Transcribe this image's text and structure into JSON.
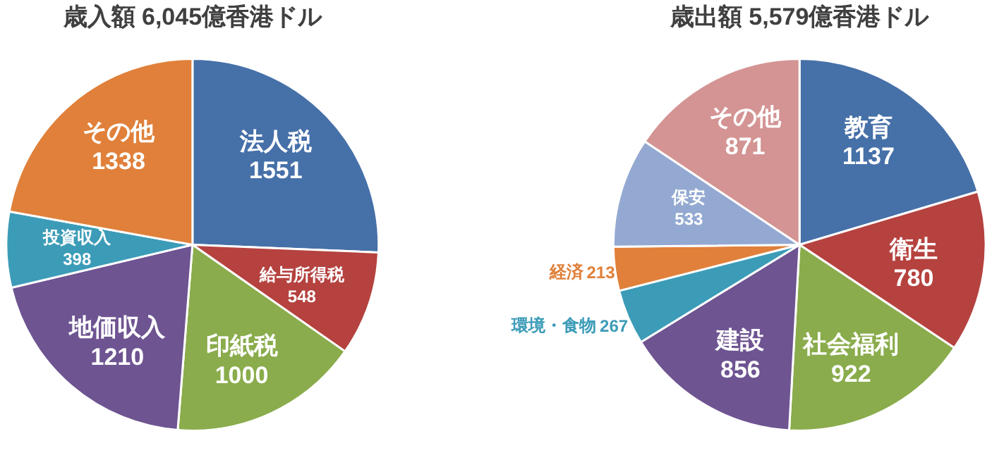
{
  "chart_data": [
    {
      "type": "pie",
      "title": "歳入額 6,045億香港ドル",
      "categories": [
        "法人税",
        "給与所得税",
        "印紙税",
        "地価収入",
        "投資収入",
        "その他"
      ],
      "values": [
        1551,
        548,
        1000,
        1210,
        398,
        1338
      ],
      "colors": [
        "#4670a8",
        "#b5423f",
        "#8aac4c",
        "#6e5491",
        "#3c9cb8",
        "#e0803a"
      ],
      "data_labels": true
    },
    {
      "type": "pie",
      "title": "歳出額 5,579億香港ドル",
      "categories": [
        "教育",
        "衛生",
        "社会福利",
        "建設",
        "環境・食物",
        "経済",
        "保安",
        "その他"
      ],
      "values": [
        1137,
        780,
        922,
        856,
        267,
        213,
        533,
        871
      ],
      "colors": [
        "#4670a8",
        "#b5423f",
        "#8aac4c",
        "#6e5491",
        "#3c9cb8",
        "#e0803a",
        "#93a9d1",
        "#d49494"
      ],
      "data_labels": true
    }
  ]
}
